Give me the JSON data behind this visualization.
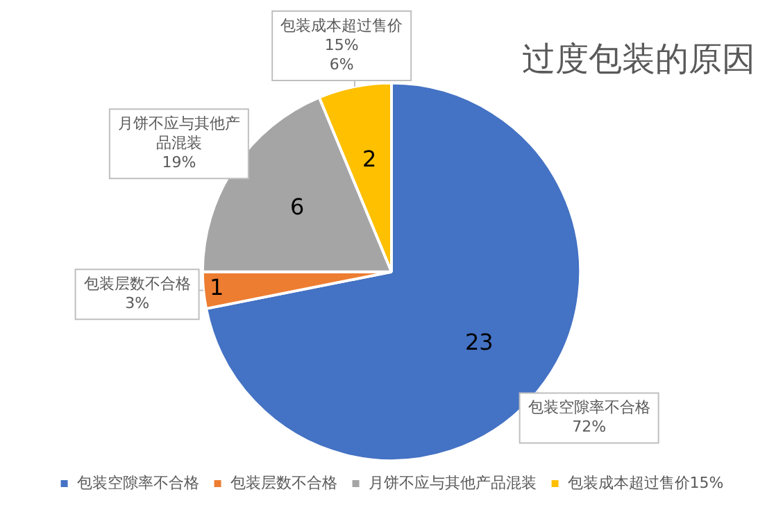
{
  "chart_data": {
    "type": "pie",
    "title": "过度包装的原因",
    "categories": [
      "包装空隙率不合格",
      "包装层数不合格",
      "月饼不应与其他产品混装",
      "包装成本超过售价15%"
    ],
    "values": [
      23,
      1,
      6,
      2
    ],
    "colors": [
      "#4472c4",
      "#ed7d31",
      "#a5a5a5",
      "#ffc000"
    ],
    "data_labels": true,
    "annotations": [
      "72%",
      "3%",
      "19%",
      "6%"
    ],
    "legend": "bottom"
  }
}
